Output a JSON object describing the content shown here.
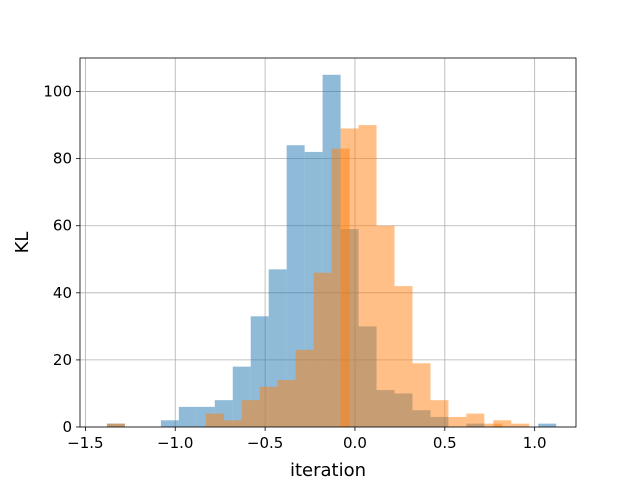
{
  "chart_data": {
    "type": "bar",
    "title": "",
    "xlabel": "iteration",
    "ylabel": "KL",
    "xlim": [
      -1.53,
      1.23
    ],
    "ylim": [
      0,
      110
    ],
    "xticks": [
      -1.5,
      -1.0,
      -0.5,
      0.0,
      0.5,
      1.0
    ],
    "xtick_labels": [
      "−1.5",
      "−1.0",
      "−0.5",
      "0.0",
      "0.5",
      "1.0"
    ],
    "yticks": [
      0,
      20,
      40,
      60,
      80,
      100
    ],
    "ytick_labels": [
      "0",
      "20",
      "40",
      "60",
      "80",
      "100"
    ],
    "grid": true,
    "legend": "none",
    "bin_width": 0.1,
    "series": [
      {
        "color": "#1f77b4",
        "opacity": 0.5,
        "bins": [
          {
            "x0": -1.38,
            "count": 1
          },
          {
            "x0": -1.08,
            "count": 2
          },
          {
            "x0": -0.98,
            "count": 6
          },
          {
            "x0": -0.88,
            "count": 6
          },
          {
            "x0": -0.78,
            "count": 8
          },
          {
            "x0": -0.68,
            "count": 18
          },
          {
            "x0": -0.58,
            "count": 33
          },
          {
            "x0": -0.48,
            "count": 47
          },
          {
            "x0": -0.38,
            "count": 84
          },
          {
            "x0": -0.28,
            "count": 82
          },
          {
            "x0": -0.18,
            "count": 105
          },
          {
            "x0": -0.08,
            "count": 59
          },
          {
            "x0": 0.02,
            "count": 30
          },
          {
            "x0": 0.12,
            "count": 11
          },
          {
            "x0": 0.22,
            "count": 10
          },
          {
            "x0": 0.32,
            "count": 5
          },
          {
            "x0": 0.42,
            "count": 3
          },
          {
            "x0": 0.62,
            "count": 1
          },
          {
            "x0": 1.02,
            "count": 1
          }
        ]
      },
      {
        "color": "#ff7f0e",
        "opacity": 0.5,
        "bins": [
          {
            "x0": -1.38,
            "count": 1
          },
          {
            "x0": -0.83,
            "count": 4
          },
          {
            "x0": -0.73,
            "count": 2
          },
          {
            "x0": -0.63,
            "count": 8
          },
          {
            "x0": -0.53,
            "count": 12
          },
          {
            "x0": -0.43,
            "count": 14
          },
          {
            "x0": -0.33,
            "count": 23
          },
          {
            "x0": -0.23,
            "count": 46
          },
          {
            "x0": -0.13,
            "count": 83
          },
          {
            "x0": -0.08,
            "count": 89
          },
          {
            "x0": 0.02,
            "count": 90
          },
          {
            "x0": 0.12,
            "count": 60
          },
          {
            "x0": 0.22,
            "count": 42
          },
          {
            "x0": 0.32,
            "count": 19
          },
          {
            "x0": 0.42,
            "count": 8
          },
          {
            "x0": 0.52,
            "count": 3
          },
          {
            "x0": 0.62,
            "count": 4
          },
          {
            "x0": 0.72,
            "count": 1
          },
          {
            "x0": 0.77,
            "count": 2
          },
          {
            "x0": 0.87,
            "count": 1
          }
        ]
      }
    ]
  }
}
